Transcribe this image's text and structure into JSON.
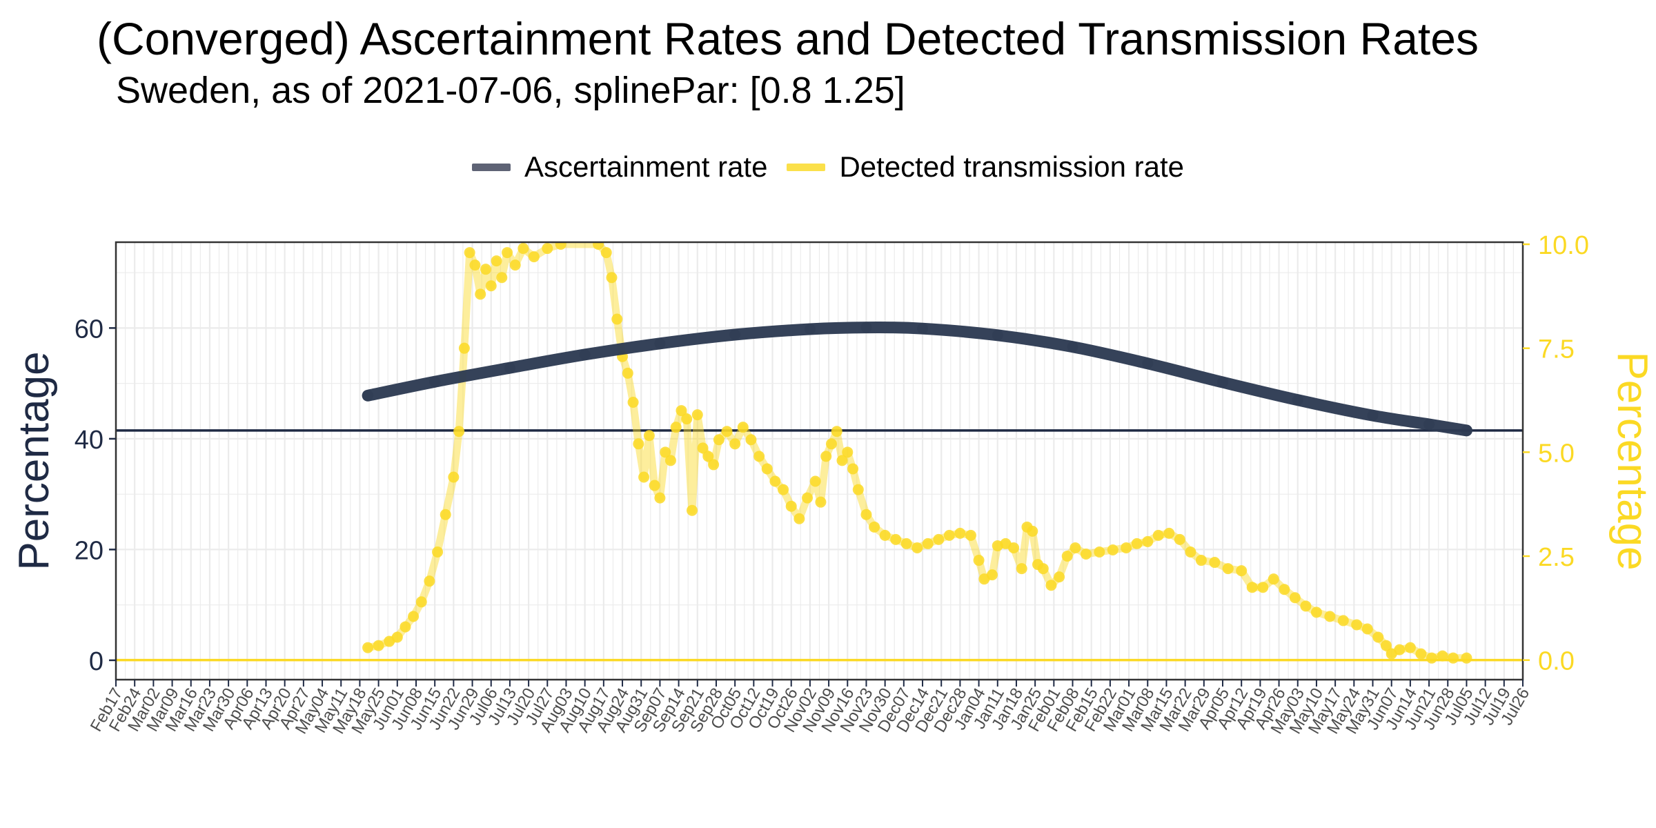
{
  "chart_data": {
    "type": "line",
    "title": "(Converged) Ascertainment Rates and Detected Transmission Rates",
    "subtitle": "Sweden, as of 2021-07-06, splinePar: [0.8 1.25]",
    "ylabel_left": "Percentage",
    "ylabel_right": "Percentage",
    "legend_position": "top",
    "grid": true,
    "colors": {
      "ascertainment": "#2d3a52",
      "transmission": "#fbd924",
      "axis": "#1f2a44",
      "grid": "#ebebeb"
    },
    "x_start": "2020-02-17",
    "x_end": "2021-07-26",
    "x_tick_labels": [
      "Feb17",
      "Feb24",
      "Mar02",
      "Mar09",
      "Mar16",
      "Mar23",
      "Mar30",
      "Apr06",
      "Apr13",
      "Apr20",
      "Apr27",
      "May04",
      "May11",
      "May18",
      "May25",
      "Jun01",
      "Jun08",
      "Jun15",
      "Jun22",
      "Jun29",
      "Jul06",
      "Jul13",
      "Jul20",
      "Jul27",
      "Aug03",
      "Aug10",
      "Aug17",
      "Aug24",
      "Aug31",
      "Sep07",
      "Sep14",
      "Sep21",
      "Sep28",
      "Oct05",
      "Oct12",
      "Oct19",
      "Oct26",
      "Nov02",
      "Nov09",
      "Nov16",
      "Nov23",
      "Nov30",
      "Dec07",
      "Dec14",
      "Dec21",
      "Dec28",
      "Jan04",
      "Jan11",
      "Jan18",
      "Jan25",
      "Feb01",
      "Feb08",
      "Feb15",
      "Feb22",
      "Mar01",
      "Mar08",
      "Mar15",
      "Mar22",
      "Mar29",
      "Apr05",
      "Apr12",
      "Apr19",
      "Apr26",
      "May03",
      "May10",
      "May17",
      "May24",
      "May31",
      "Jun07",
      "Jun14",
      "Jun21",
      "Jun28",
      "Jul05",
      "Jul12",
      "Jul19",
      "Jul26"
    ],
    "y_left": {
      "ticks": [
        0,
        20,
        40,
        60
      ],
      "ylim": [
        -3.5,
        75.5
      ]
    },
    "y_right": {
      "ticks": [
        "0.0",
        "2.5",
        "5.0",
        "7.5",
        "10.0"
      ],
      "ylim": [
        -0.47,
        10.05
      ]
    },
    "reference_lines": [
      {
        "axis": "left",
        "value": 41.5,
        "color": "#1f2a44"
      },
      {
        "axis": "right",
        "value": 0.0,
        "color": "#fbd924"
      }
    ],
    "series": [
      {
        "name": "Ascertainment rate",
        "axis": "left",
        "points": [
          [
            "2020-05-21",
            47.8
          ],
          [
            "2020-06-15",
            50.3
          ],
          [
            "2020-07-13",
            52.8
          ],
          [
            "2020-08-10",
            55.2
          ],
          [
            "2020-09-07",
            57.2
          ],
          [
            "2020-10-05",
            58.8
          ],
          [
            "2020-11-02",
            59.8
          ],
          [
            "2020-11-23",
            60.1
          ],
          [
            "2020-12-14",
            59.9
          ],
          [
            "2021-01-11",
            58.7
          ],
          [
            "2021-02-08",
            56.6
          ],
          [
            "2021-03-08",
            53.6
          ],
          [
            "2021-04-05",
            50.2
          ],
          [
            "2021-05-03",
            47.0
          ],
          [
            "2021-05-31",
            44.2
          ],
          [
            "2021-06-21",
            42.6
          ],
          [
            "2021-07-05",
            41.5
          ]
        ]
      },
      {
        "name": "Detected transmission rate",
        "axis": "right",
        "points": [
          [
            "2020-05-21",
            0.3
          ],
          [
            "2020-05-25",
            0.35
          ],
          [
            "2020-05-29",
            0.45
          ],
          [
            "2020-06-01",
            0.55
          ],
          [
            "2020-06-04",
            0.8
          ],
          [
            "2020-06-07",
            1.05
          ],
          [
            "2020-06-10",
            1.4
          ],
          [
            "2020-06-13",
            1.9
          ],
          [
            "2020-06-16",
            2.6
          ],
          [
            "2020-06-19",
            3.5
          ],
          [
            "2020-06-22",
            4.4
          ],
          [
            "2020-06-24",
            5.5
          ],
          [
            "2020-06-26",
            7.5
          ],
          [
            "2020-06-28",
            9.8
          ],
          [
            "2020-06-30",
            9.5
          ],
          [
            "2020-07-02",
            8.8
          ],
          [
            "2020-07-04",
            9.4
          ],
          [
            "2020-07-06",
            9.0
          ],
          [
            "2020-07-08",
            9.6
          ],
          [
            "2020-07-10",
            9.2
          ],
          [
            "2020-07-12",
            9.8
          ],
          [
            "2020-07-15",
            9.5
          ],
          [
            "2020-07-18",
            9.9
          ],
          [
            "2020-07-22",
            9.7
          ],
          [
            "2020-07-27",
            9.9
          ],
          [
            "2020-08-01",
            10.0
          ],
          [
            "2020-08-15",
            10.0
          ],
          [
            "2020-08-18",
            9.8
          ],
          [
            "2020-08-20",
            9.2
          ],
          [
            "2020-08-22",
            8.2
          ],
          [
            "2020-08-24",
            7.3
          ],
          [
            "2020-08-26",
            6.9
          ],
          [
            "2020-08-28",
            6.2
          ],
          [
            "2020-08-30",
            5.2
          ],
          [
            "2020-09-01",
            4.4
          ],
          [
            "2020-09-03",
            5.4
          ],
          [
            "2020-09-05",
            4.2
          ],
          [
            "2020-09-07",
            3.9
          ],
          [
            "2020-09-09",
            5.0
          ],
          [
            "2020-09-11",
            4.8
          ],
          [
            "2020-09-13",
            5.6
          ],
          [
            "2020-09-15",
            6.0
          ],
          [
            "2020-09-17",
            5.8
          ],
          [
            "2020-09-19",
            3.6
          ],
          [
            "2020-09-21",
            5.9
          ],
          [
            "2020-09-23",
            5.1
          ],
          [
            "2020-09-25",
            4.9
          ],
          [
            "2020-09-27",
            4.7
          ],
          [
            "2020-09-29",
            5.3
          ],
          [
            "2020-10-02",
            5.5
          ],
          [
            "2020-10-05",
            5.2
          ],
          [
            "2020-10-08",
            5.6
          ],
          [
            "2020-10-11",
            5.3
          ],
          [
            "2020-10-14",
            4.9
          ],
          [
            "2020-10-17",
            4.6
          ],
          [
            "2020-10-20",
            4.3
          ],
          [
            "2020-10-23",
            4.1
          ],
          [
            "2020-10-26",
            3.7
          ],
          [
            "2020-10-29",
            3.4
          ],
          [
            "2020-11-01",
            3.9
          ],
          [
            "2020-11-04",
            4.3
          ],
          [
            "2020-11-06",
            3.8
          ],
          [
            "2020-11-08",
            4.9
          ],
          [
            "2020-11-10",
            5.2
          ],
          [
            "2020-11-12",
            5.5
          ],
          [
            "2020-11-14",
            4.8
          ],
          [
            "2020-11-16",
            5.0
          ],
          [
            "2020-11-18",
            4.6
          ],
          [
            "2020-11-20",
            4.1
          ],
          [
            "2020-11-23",
            3.5
          ],
          [
            "2020-11-26",
            3.2
          ],
          [
            "2020-11-30",
            3.0
          ],
          [
            "2020-12-04",
            2.9
          ],
          [
            "2020-12-08",
            2.8
          ],
          [
            "2020-12-12",
            2.7
          ],
          [
            "2020-12-16",
            2.8
          ],
          [
            "2020-12-20",
            2.9
          ],
          [
            "2020-12-24",
            3.0
          ],
          [
            "2020-12-28",
            3.05
          ],
          [
            "2021-01-01",
            3.0
          ],
          [
            "2021-01-04",
            2.4
          ],
          [
            "2021-01-06",
            1.95
          ],
          [
            "2021-01-09",
            2.05
          ],
          [
            "2021-01-11",
            2.75
          ],
          [
            "2021-01-14",
            2.8
          ],
          [
            "2021-01-17",
            2.7
          ],
          [
            "2021-01-20",
            2.2
          ],
          [
            "2021-01-22",
            3.2
          ],
          [
            "2021-01-24",
            3.1
          ],
          [
            "2021-01-26",
            2.3
          ],
          [
            "2021-01-28",
            2.2
          ],
          [
            "2021-01-31",
            1.8
          ],
          [
            "2021-02-03",
            2.0
          ],
          [
            "2021-02-06",
            2.5
          ],
          [
            "2021-02-09",
            2.7
          ],
          [
            "2021-02-13",
            2.55
          ],
          [
            "2021-02-18",
            2.6
          ],
          [
            "2021-02-23",
            2.65
          ],
          [
            "2021-02-28",
            2.7
          ],
          [
            "2021-03-04",
            2.8
          ],
          [
            "2021-03-08",
            2.85
          ],
          [
            "2021-03-12",
            3.0
          ],
          [
            "2021-03-16",
            3.05
          ],
          [
            "2021-03-20",
            2.9
          ],
          [
            "2021-03-24",
            2.6
          ],
          [
            "2021-03-28",
            2.4
          ],
          [
            "2021-04-02",
            2.35
          ],
          [
            "2021-04-07",
            2.2
          ],
          [
            "2021-04-12",
            2.15
          ],
          [
            "2021-04-16",
            1.75
          ],
          [
            "2021-04-20",
            1.75
          ],
          [
            "2021-04-24",
            1.95
          ],
          [
            "2021-04-28",
            1.7
          ],
          [
            "2021-05-02",
            1.5
          ],
          [
            "2021-05-06",
            1.3
          ],
          [
            "2021-05-10",
            1.15
          ],
          [
            "2021-05-15",
            1.05
          ],
          [
            "2021-05-20",
            0.95
          ],
          [
            "2021-05-25",
            0.85
          ],
          [
            "2021-05-29",
            0.75
          ],
          [
            "2021-06-02",
            0.55
          ],
          [
            "2021-06-05",
            0.35
          ],
          [
            "2021-06-07",
            0.15
          ],
          [
            "2021-06-10",
            0.25
          ],
          [
            "2021-06-14",
            0.3
          ],
          [
            "2021-06-18",
            0.15
          ],
          [
            "2021-06-22",
            0.05
          ],
          [
            "2021-06-26",
            0.1
          ],
          [
            "2021-06-30",
            0.05
          ],
          [
            "2021-07-05",
            0.05
          ]
        ]
      }
    ]
  }
}
